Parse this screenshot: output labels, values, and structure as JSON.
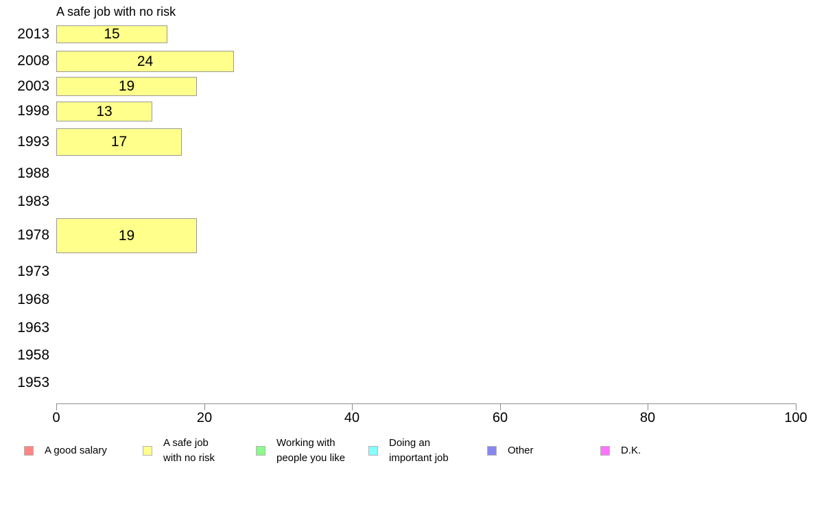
{
  "chart_data": {
    "type": "bar",
    "orientation": "horizontal",
    "title": "A safe job with no risk",
    "categories": [
      "2013",
      "2008",
      "2003",
      "1998",
      "1993",
      "1988",
      "1983",
      "1978",
      "1973",
      "1968",
      "1963",
      "1958",
      "1953"
    ],
    "values": [
      15,
      24,
      19,
      13,
      17,
      null,
      null,
      19,
      null,
      null,
      null,
      null,
      null
    ],
    "value_labels": [
      "15",
      "24",
      "19",
      "13",
      "17",
      "",
      "",
      "19",
      "",
      "",
      "",
      "",
      ""
    ],
    "xlabel": "",
    "ylabel": "",
    "xlim": [
      0,
      100
    ],
    "x_ticks": [
      "0",
      "20",
      "40",
      "60",
      "80",
      "100"
    ],
    "grid": false,
    "bar_color": "#FFFF8C",
    "bar_border_color": "#999999",
    "axis_color": "#8c8c8c",
    "legend_position": "bottom",
    "legend": [
      {
        "label": "A good salary",
        "color": "#FF8585"
      },
      {
        "label": "A safe job\nwith no risk",
        "color": "#FFFF8C"
      },
      {
        "label": "Working with\npeople you like",
        "color": "#8CF98C"
      },
      {
        "label": "Doing an\nimportant job",
        "color": "#85FFFF"
      },
      {
        "label": "Other",
        "color": "#8787F0"
      },
      {
        "label": "D.K.",
        "color": "#FB74FB"
      }
    ]
  }
}
